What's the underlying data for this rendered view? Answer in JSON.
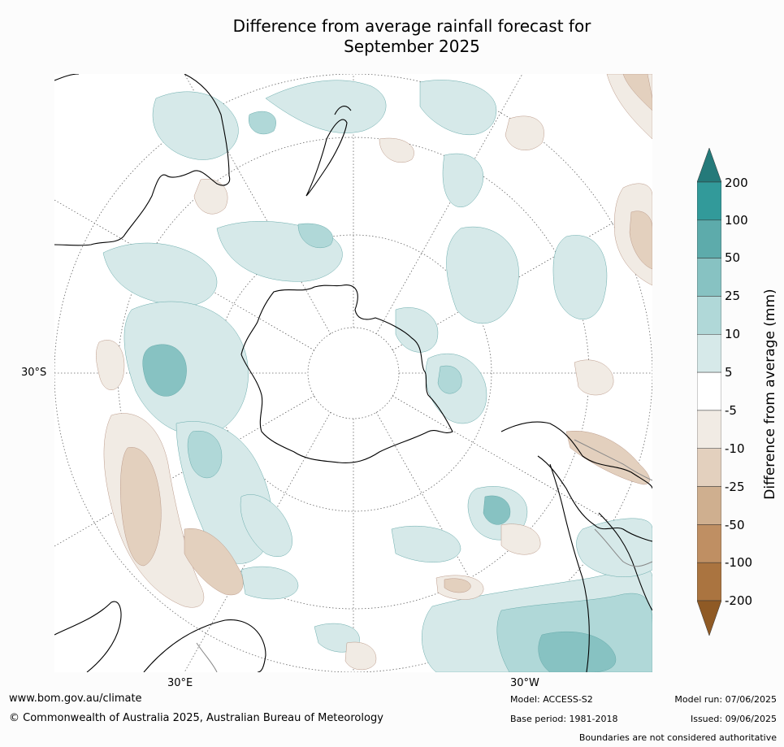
{
  "title_line1": "Difference from average rainfall forecast for",
  "title_line2": "September 2025",
  "map": {
    "lat_labels": [
      "30°S"
    ],
    "lon_labels": [
      "30°E",
      "30°W"
    ]
  },
  "legend": {
    "title": "Difference from average (mm)",
    "ticks": [
      "200",
      "100",
      "50",
      "25",
      "10",
      "5",
      "-5",
      "-10",
      "-25",
      "-50",
      "-100",
      "-200"
    ],
    "colors": [
      "#257a7a",
      "#329a9a",
      "#5dabab",
      "#87c2c2",
      "#b0d8d8",
      "#d6e9e9",
      "#ffffff",
      "#f1ebe4",
      "#e3d0be",
      "#cfaf8f",
      "#bf8f63",
      "#aa7440",
      "#8f5a25"
    ]
  },
  "footer": {
    "website": "www.bom.gov.au/climate",
    "copyright": "© Commonwealth of Australia 2025, Australian Bureau of Meteorology",
    "model": "Model: ACCESS-S2",
    "base_period": "Base period: 1981-2018",
    "model_run": "Model run: 07/06/2025",
    "issued": "Issued: 09/06/2025",
    "disclaimer": "Boundaries are not considered authoritative"
  }
}
